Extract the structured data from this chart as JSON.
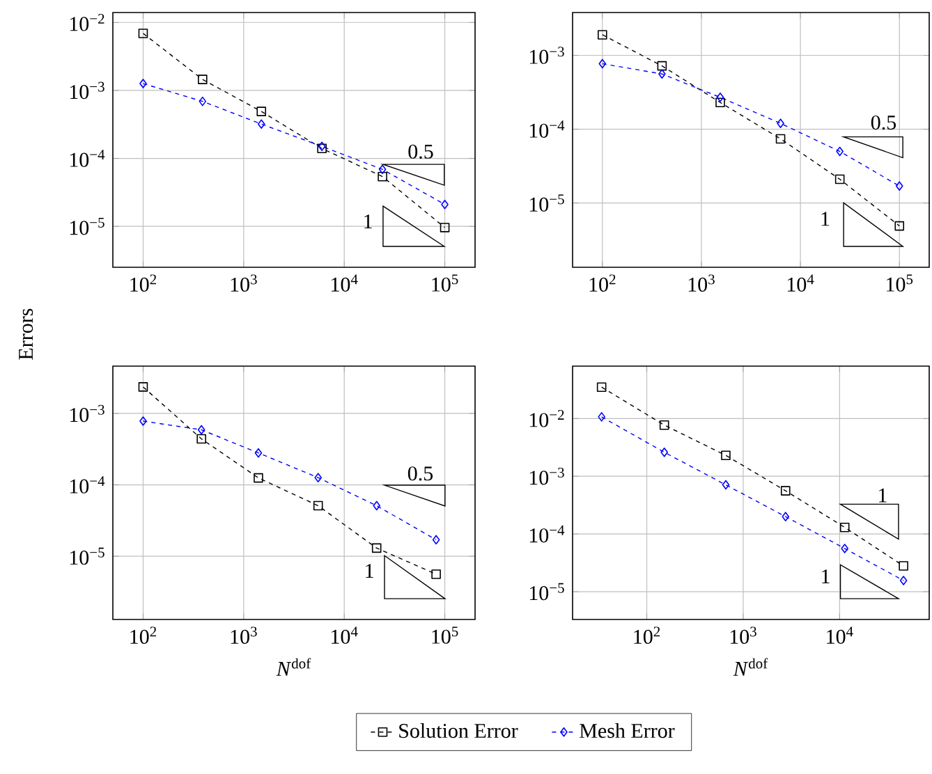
{
  "chart_data": [
    {
      "type": "line",
      "log": "xy",
      "grid": true,
      "line_style": "dashed",
      "xlim": [
        50,
        200000
      ],
      "ylim": [
        2.5e-06,
        0.014
      ],
      "xticks": [
        {
          "value": 100,
          "label": "10$^{2}$"
        },
        {
          "value": 1000,
          "label": "10$^{3}$"
        },
        {
          "value": 10000,
          "label": "10$^{4}$"
        },
        {
          "value": 100000,
          "label": "10$^{5}$"
        }
      ],
      "yticks": [
        {
          "value": 1e-05,
          "label": "10$^{−5}$"
        },
        {
          "value": 0.0001,
          "label": "10$^{−4}$"
        },
        {
          "value": 0.001,
          "label": "10$^{−3}$"
        },
        {
          "value": 0.01,
          "label": "10$^{−2}$"
        }
      ],
      "series": [
        {
          "color": "#000000",
          "marker": "square",
          "x": [
            100,
            390,
            1500,
            6000,
            24000,
            100000
          ],
          "values": [
            0.0069,
            0.00145,
            0.00049,
            0.00014,
            5.4e-05,
            9.6e-06
          ]
        },
        {
          "color": "#0000ff",
          "marker": "diamond",
          "x": [
            100,
            390,
            1500,
            6000,
            24000,
            100000
          ],
          "values": [
            0.00126,
            0.00069,
            0.00032,
            0.00015,
            6.9e-05,
            2.1e-05
          ]
        }
      ],
      "annotations": [
        "0.5",
        "1"
      ]
    },
    {
      "type": "line",
      "log": "xy",
      "grid": true,
      "line_style": "dashed",
      "xlim": [
        50,
        200000
      ],
      "ylim": [
        1.35e-06,
        0.0038
      ],
      "xticks": [
        {
          "value": 100,
          "label": "10$^{2}$"
        },
        {
          "value": 1000,
          "label": "10$^{3}$"
        },
        {
          "value": 10000,
          "label": "10$^{4}$"
        },
        {
          "value": 100000,
          "label": "10$^{5}$"
        }
      ],
      "yticks": [
        {
          "value": 1e-05,
          "label": "10$^{−5}$"
        },
        {
          "value": 0.0001,
          "label": "10$^{−4}$"
        },
        {
          "value": 0.001,
          "label": "10$^{−3}$"
        }
      ],
      "series": [
        {
          "color": "#000000",
          "marker": "square",
          "x": [
            100,
            400,
            1550,
            6300,
            25000,
            100000
          ],
          "values": [
            0.0019,
            0.00072,
            0.00023,
            7.4e-05,
            2.1e-05,
            4.9e-06
          ]
        },
        {
          "color": "#0000ff",
          "marker": "diamond",
          "x": [
            100,
            400,
            1550,
            6300,
            25000,
            100000
          ],
          "values": [
            0.00077,
            0.00056,
            0.00027,
            0.00012,
            5e-05,
            1.7e-05
          ]
        }
      ],
      "annotations": [
        "0.5",
        "1"
      ]
    },
    {
      "type": "line",
      "log": "xy",
      "grid": true,
      "line_style": "dashed",
      "legend": "bottom",
      "xlabel": "*N*$^{dof}$",
      "ylabel": "Errors",
      "xlim": [
        50,
        200000
      ],
      "ylim": [
        1.3e-06,
        0.0046
      ],
      "xticks": [
        {
          "value": 100,
          "label": "10$^{2}$"
        },
        {
          "value": 1000,
          "label": "10$^{3}$"
        },
        {
          "value": 10000,
          "label": "10$^{4}$"
        },
        {
          "value": 100000,
          "label": "10$^{5}$"
        }
      ],
      "yticks": [
        {
          "value": 1e-05,
          "label": "10$^{−5}$"
        },
        {
          "value": 0.0001,
          "label": "10$^{−4}$"
        },
        {
          "value": 0.001,
          "label": "10$^{−3}$"
        }
      ],
      "series": [
        {
          "name": "Solution Error",
          "color": "#000000",
          "marker": "square",
          "x": [
            100,
            380,
            1400,
            5500,
            21000,
            82000
          ],
          "values": [
            0.00235,
            0.00044,
            0.000125,
            5.1e-05,
            1.3e-05,
            5.6e-06
          ]
        },
        {
          "name": "Mesh Error",
          "color": "#0000ff",
          "marker": "diamond",
          "x": [
            100,
            380,
            1400,
            5500,
            21000,
            82000
          ],
          "values": [
            0.00078,
            0.00059,
            0.00028,
            0.000126,
            5.1e-05,
            1.7e-05
          ]
        }
      ],
      "annotations": [
        "0.5",
        "1"
      ]
    },
    {
      "type": "line",
      "log": "xy",
      "grid": true,
      "line_style": "dashed",
      "xlabel": "*N*$^{dof}$",
      "xlim": [
        17,
        85000
      ],
      "ylim": [
        3.3e-06,
        0.081
      ],
      "xticks": [
        {
          "value": 100,
          "label": "10$^{2}$"
        },
        {
          "value": 1000,
          "label": "10$^{3}$"
        },
        {
          "value": 10000,
          "label": "10$^{4}$"
        }
      ],
      "yticks": [
        {
          "value": 1e-05,
          "label": "10$^{−5}$"
        },
        {
          "value": 0.0001,
          "label": "10$^{−4}$"
        },
        {
          "value": 0.001,
          "label": "10$^{−3}$"
        },
        {
          "value": 0.01,
          "label": "10$^{−2}$"
        }
      ],
      "series": [
        {
          "color": "#000000",
          "marker": "square",
          "x": [
            34,
            152,
            660,
            2750,
            11300,
            46000
          ],
          "values": [
            0.035,
            0.0077,
            0.0023,
            0.00056,
            0.00013,
            2.8e-05
          ]
        },
        {
          "color": "#0000ff",
          "marker": "diamond",
          "x": [
            34,
            152,
            660,
            2750,
            11300,
            46000
          ],
          "values": [
            0.0107,
            0.0026,
            0.00071,
            0.0002,
            5.6e-05,
            1.56e-05
          ]
        }
      ],
      "annotations": [
        "1",
        "1"
      ]
    }
  ]
}
